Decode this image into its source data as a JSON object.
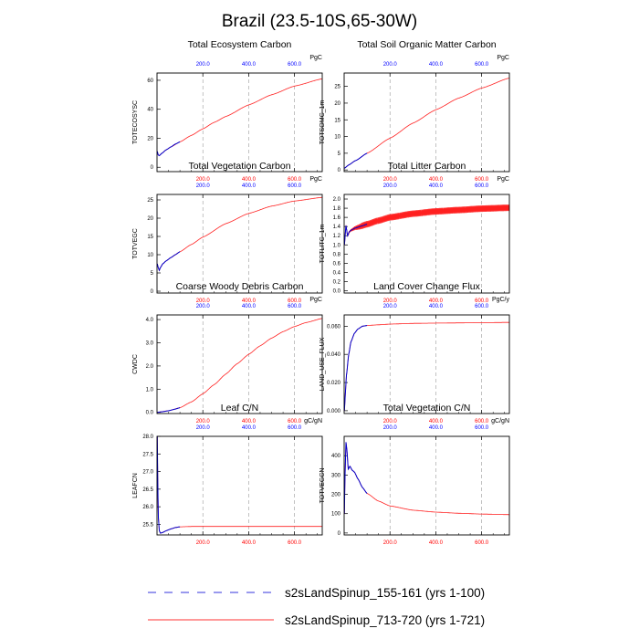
{
  "figure": {
    "title": "Brazil (23.5-10S,65-30W)"
  },
  "panels": [
    {
      "title": "Total Ecosystem Carbon",
      "ylabel": "TOTECOSYSC",
      "units": "PgC",
      "yticks": [
        "0",
        "20",
        "40",
        "60"
      ],
      "top_ticks": [
        "200.0",
        "400.0",
        "600.0"
      ],
      "bottom_ticks": [
        "200.0",
        "400.0",
        "600.0"
      ]
    },
    {
      "title": "Total Soil Organic Matter Carbon",
      "ylabel": "TOTSOMC_1m",
      "units": "PgC",
      "yticks": [
        "0",
        "5",
        "10",
        "15",
        "20",
        "25"
      ],
      "top_ticks": [
        "200.0",
        "400.0",
        "600.0"
      ],
      "bottom_ticks": [
        "200.0",
        "400.0",
        "600.0"
      ]
    },
    {
      "title": "Total Vegetation Carbon",
      "ylabel": "TOTVEGC",
      "units": "PgC",
      "yticks": [
        "0",
        "5",
        "10",
        "15",
        "20",
        "25"
      ],
      "top_ticks": [
        "200.0",
        "400.0",
        "600.0"
      ],
      "bottom_ticks": [
        "200.0",
        "400.0",
        "600.0"
      ]
    },
    {
      "title": "Total Litter Carbon",
      "ylabel": "TOTLITC_1m",
      "units": "PgC",
      "yticks": [
        "0.0",
        "0.2",
        "0.4",
        "0.6",
        "0.8",
        "1.0",
        "1.2",
        "1.4",
        "1.6",
        "1.8",
        "2.0"
      ],
      "top_ticks": [
        "200.0",
        "400.0",
        "600.0"
      ],
      "bottom_ticks": [
        "200.0",
        "400.0",
        "600.0"
      ]
    },
    {
      "title": "Coarse Woody Debris Carbon",
      "ylabel": "CWDC",
      "units": "PgC",
      "yticks": [
        "0.0",
        "1.0",
        "2.0",
        "3.0",
        "4.0"
      ],
      "top_ticks": [
        "200.0",
        "400.0",
        "600.0"
      ],
      "bottom_ticks": [
        "200.0",
        "400.0",
        "600.0"
      ]
    },
    {
      "title": "Land Cover Change Flux",
      "ylabel": "LAND_USE_FLUX",
      "units": "PgC/y",
      "yticks": [
        "0.000",
        "0.020",
        "0.040",
        "0.060"
      ],
      "top_ticks": [
        "200.0",
        "400.0",
        "600.0"
      ],
      "bottom_ticks": [
        "200.0",
        "400.0",
        "600.0"
      ]
    },
    {
      "title": "Leaf C/N",
      "ylabel": "LEAFCN",
      "units": "gC/gN",
      "yticks": [
        "25.5",
        "26.0",
        "26.5",
        "27.0",
        "27.5",
        "28.0"
      ],
      "top_ticks": [
        "200.0",
        "400.0",
        "600.0"
      ],
      "bottom_ticks": [
        "200.0",
        "400.0",
        "600.0"
      ]
    },
    {
      "title": "Total Vegetation C/N",
      "ylabel": "TOTVEGCN",
      "units": "gC/gN",
      "yticks": [
        "0",
        "100",
        "200",
        "300",
        "400"
      ],
      "top_ticks": [
        "200.0",
        "400.0",
        "600.0"
      ],
      "bottom_ticks": [
        "200.0",
        "400.0",
        "600.0"
      ]
    }
  ],
  "legend": {
    "entries": [
      {
        "label": "s2sLandSpinup_155-161 (yrs 1-100)",
        "color": "#3333dd",
        "style": "dashed"
      },
      {
        "label": "s2sLandSpinup_713-720 (yrs 1-721)",
        "color": "#ff3333",
        "style": "solid"
      }
    ]
  },
  "colors": {
    "case1": "#0000cc",
    "case2": "#ff2020",
    "top_tick_labels": "#0000ff",
    "bottom_tick_labels": "#ff0000",
    "gridlines": "#999999"
  },
  "chart_data": [
    {
      "type": "line",
      "title": "Total Ecosystem Carbon",
      "ylabel": "TOTECOSYSC",
      "units": "PgC",
      "xlim": [
        0,
        721
      ],
      "ylim": [
        -3,
        65
      ],
      "series": [
        {
          "name": "s2sLandSpinup_713-720 (yrs 1-721)",
          "x": [
            1,
            5,
            10,
            20,
            40,
            60,
            100,
            150,
            200,
            250,
            300,
            400,
            500,
            600,
            721
          ],
          "y": [
            11,
            8.5,
            8,
            9.5,
            12,
            14,
            17.5,
            22,
            26.5,
            31,
            35,
            43,
            50,
            56,
            61
          ]
        },
        {
          "name": "s2sLandSpinup_155-161 (yrs 1-100)",
          "x": [
            1,
            5,
            10,
            20,
            40,
            60,
            80,
            100
          ],
          "y": [
            11,
            8.5,
            8,
            9.5,
            12,
            14,
            16,
            17.5
          ]
        }
      ]
    },
    {
      "type": "line",
      "title": "Total Soil Organic Matter Carbon",
      "ylabel": "TOTSOMC_1m",
      "units": "PgC",
      "xlim": [
        0,
        721
      ],
      "ylim": [
        -0.5,
        29
      ],
      "series": [
        {
          "name": "s2sLandSpinup_713-720 (yrs 1-721)",
          "x": [
            1,
            20,
            50,
            100,
            200,
            300,
            400,
            500,
            600,
            721
          ],
          "y": [
            0.5,
            1.5,
            2.8,
            5,
            9.5,
            14,
            18,
            21.5,
            24.5,
            27.5
          ]
        },
        {
          "name": "s2sLandSpinup_155-161 (yrs 1-100)",
          "x": [
            1,
            20,
            50,
            100
          ],
          "y": [
            0.5,
            1.5,
            2.8,
            5
          ]
        }
      ]
    },
    {
      "type": "line",
      "title": "Total Vegetation Carbon",
      "ylabel": "TOTVEGC",
      "units": "PgC",
      "xlim": [
        0,
        721
      ],
      "ylim": [
        -0.5,
        26.5
      ],
      "series": [
        {
          "name": "s2sLandSpinup_713-720 (yrs 1-721)",
          "x": [
            1,
            5,
            10,
            15,
            25,
            40,
            60,
            100,
            150,
            200,
            300,
            400,
            500,
            600,
            721
          ],
          "y": [
            7.5,
            6.5,
            5.7,
            6.5,
            7.5,
            8.3,
            9.2,
            10.8,
            12.8,
            14.8,
            18.5,
            21.3,
            23.3,
            24.7,
            25.7
          ]
        },
        {
          "name": "s2sLandSpinup_155-161 (yrs 1-100)",
          "x": [
            1,
            5,
            10,
            15,
            25,
            40,
            60,
            80,
            100
          ],
          "y": [
            7.5,
            6.5,
            5.7,
            6.5,
            7.5,
            8.3,
            9.2,
            10,
            10.8
          ]
        }
      ]
    },
    {
      "type": "line",
      "title": "Total Litter Carbon",
      "ylabel": "TOTLITC_1m",
      "units": "PgC",
      "xlim": [
        0,
        721
      ],
      "ylim": [
        -0.05,
        2.1
      ],
      "series": [
        {
          "name": "s2sLandSpinup_713-720 (yrs 1-721)",
          "seasonal_amplitude": 0.14,
          "x": [
            1,
            8,
            15,
            22,
            30,
            50,
            100,
            150,
            200,
            300,
            400,
            500,
            600,
            721
          ],
          "y": [
            1.0,
            1.42,
            1.2,
            1.28,
            1.32,
            1.37,
            1.45,
            1.53,
            1.6,
            1.68,
            1.73,
            1.76,
            1.79,
            1.81
          ]
        },
        {
          "name": "s2sLandSpinup_155-161 (yrs 1-100)",
          "x": [
            1,
            8,
            15,
            22,
            30,
            50,
            75,
            100
          ],
          "y": [
            1.0,
            1.42,
            1.2,
            1.28,
            1.32,
            1.37,
            1.41,
            1.45
          ]
        }
      ]
    },
    {
      "type": "line",
      "title": "Coarse Woody Debris Carbon",
      "ylabel": "CWDC",
      "units": "PgC",
      "xlim": [
        0,
        721
      ],
      "ylim": [
        -0.05,
        4.2
      ],
      "series": [
        {
          "name": "s2sLandSpinup_713-720 (yrs 1-721)",
          "x": [
            1,
            50,
            100,
            150,
            200,
            250,
            300,
            350,
            400,
            450,
            500,
            550,
            600,
            650,
            721
          ],
          "y": [
            0.0,
            0.07,
            0.2,
            0.45,
            0.8,
            1.2,
            1.65,
            2.1,
            2.5,
            2.87,
            3.2,
            3.48,
            3.7,
            3.87,
            4.05
          ]
        },
        {
          "name": "s2sLandSpinup_155-161 (yrs 1-100)",
          "x": [
            1,
            25,
            50,
            75,
            100
          ],
          "y": [
            0.0,
            0.03,
            0.07,
            0.13,
            0.2
          ]
        }
      ]
    },
    {
      "type": "line",
      "title": "Land Cover Change Flux",
      "ylabel": "LAND_USE_FLUX",
      "units": "PgC/y",
      "xlim": [
        0,
        721
      ],
      "ylim": [
        -0.002,
        0.068
      ],
      "series": [
        {
          "name": "s2sLandSpinup_713-720 (yrs 1-721)",
          "x": [
            1,
            5,
            10,
            20,
            30,
            45,
            60,
            80,
            100,
            150,
            200,
            300,
            400,
            600,
            721
          ],
          "y": [
            0.0,
            0.012,
            0.025,
            0.04,
            0.049,
            0.055,
            0.058,
            0.06,
            0.0605,
            0.061,
            0.0615,
            0.062,
            0.0622,
            0.0625,
            0.0627
          ]
        },
        {
          "name": "s2sLandSpinup_155-161 (yrs 1-100)",
          "x": [
            1,
            5,
            10,
            20,
            30,
            45,
            60,
            80,
            100
          ],
          "y": [
            0.0,
            0.012,
            0.025,
            0.04,
            0.049,
            0.055,
            0.058,
            0.06,
            0.0605
          ]
        }
      ]
    },
    {
      "type": "line",
      "title": "Leaf C/N",
      "ylabel": "LEAFCN",
      "units": "gC/gN",
      "xlim": [
        0,
        721
      ],
      "ylim": [
        25.2,
        28.0
      ],
      "series": [
        {
          "name": "s2sLandSpinup_713-720 (yrs 1-721)",
          "x": [
            1,
            3,
            6,
            10,
            15,
            25,
            40,
            60,
            80,
            100,
            150,
            200,
            400,
            721
          ],
          "y": [
            28.0,
            26.8,
            25.7,
            25.32,
            25.25,
            25.27,
            25.32,
            25.37,
            25.41,
            25.43,
            25.44,
            25.44,
            25.44,
            25.44
          ]
        },
        {
          "name": "s2sLandSpinup_155-161 (yrs 1-100)",
          "x": [
            1,
            3,
            6,
            10,
            15,
            25,
            40,
            60,
            80,
            100
          ],
          "y": [
            28.0,
            26.8,
            25.7,
            25.32,
            25.25,
            25.27,
            25.32,
            25.37,
            25.41,
            25.43
          ]
        }
      ]
    },
    {
      "type": "line",
      "title": "Total Vegetation C/N",
      "ylabel": "TOTVEGCN",
      "units": "gC/gN",
      "xlim": [
        0,
        721
      ],
      "ylim": [
        -10,
        500
      ],
      "series": [
        {
          "name": "s2sLandSpinup_713-720 (yrs 1-721)",
          "x": [
            1,
            4,
            8,
            12,
            18,
            25,
            35,
            45,
            60,
            80,
            100,
            150,
            200,
            300,
            400,
            500,
            600,
            721
          ],
          "y": [
            100,
            300,
            470,
            430,
            330,
            345,
            325,
            315,
            280,
            235,
            205,
            165,
            140,
            118,
            108,
            102,
            98,
            95
          ]
        },
        {
          "name": "s2sLandSpinup_155-161 (yrs 1-100)",
          "x": [
            1,
            4,
            8,
            12,
            18,
            25,
            35,
            45,
            60,
            80,
            100
          ],
          "y": [
            100,
            300,
            470,
            430,
            330,
            345,
            325,
            315,
            280,
            235,
            205
          ]
        }
      ]
    }
  ]
}
